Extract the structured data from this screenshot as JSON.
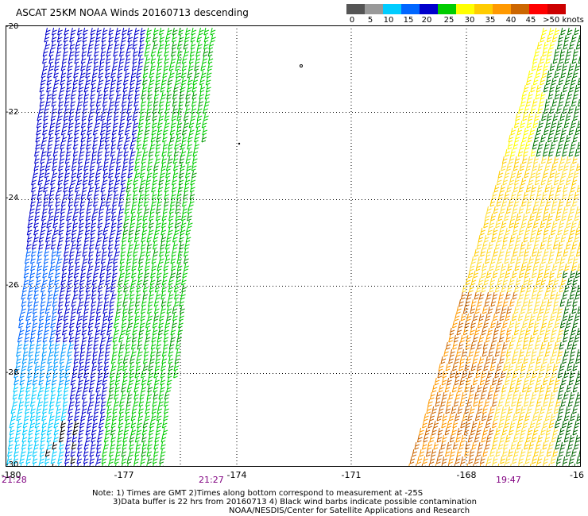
{
  "title": "ASCAT 25KM NOAA Winds 20160713 descending",
  "legend": {
    "labels": [
      "0",
      "5",
      "10",
      "15",
      "20",
      "25",
      "30",
      "35",
      "40",
      "45",
      ">50 knots"
    ],
    "colors": [
      "#555555",
      "#999999",
      "#00ccff",
      "#0066ff",
      "#0000cc",
      "#00cc00",
      "#ffff00",
      "#ffcc00",
      "#ff9900",
      "#cc6600",
      "#ff0000",
      "#cc0000",
      "#996633",
      "#ff33cc",
      "#cc00cc",
      "#6600cc",
      "#330099"
    ]
  },
  "map": {
    "lat_labels": [
      "-20",
      "-22",
      "-24",
      "-26",
      "-28",
      "-30"
    ],
    "lon_labels": [
      "-180",
      "-177",
      "-174",
      "-171",
      "-168",
      "-16"
    ],
    "pass_times": [
      "21:28",
      "21:27",
      "19:47"
    ]
  },
  "notes": {
    "line1": "Note: 1) Times are GMT 2)Times along bottom correspond to measurement at -25S",
    "line2": "3)Data buffer is 22 hrs from 20160713 4) Black wind barbs indicate possible contamination",
    "line3": "NOAA/NESDIS/Center for Satellite Applications and Research"
  }
}
